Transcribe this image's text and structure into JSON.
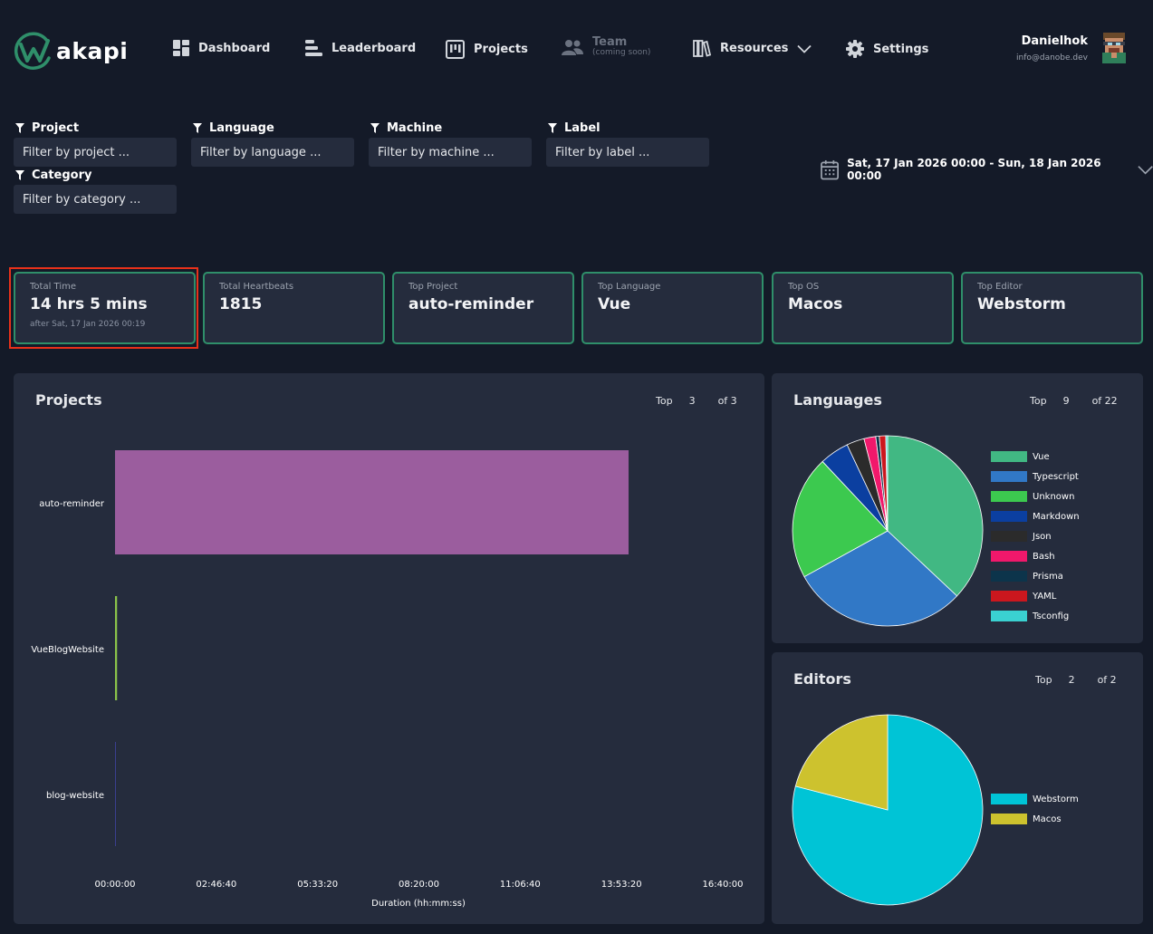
{
  "app": {
    "name": "akapi"
  },
  "nav": {
    "dashboard": "Dashboard",
    "leaderboard": "Leaderboard",
    "projects": "Projects",
    "team": "Team",
    "team_sub": "(coming soon)",
    "resources": "Resources",
    "settings": "Settings"
  },
  "user": {
    "name": "Danielhok",
    "email": "info@danobe.dev"
  },
  "filters": {
    "project": {
      "label": "Project",
      "placeholder": "Filter by project ..."
    },
    "language": {
      "label": "Language",
      "placeholder": "Filter by language ..."
    },
    "machine": {
      "label": "Machine",
      "placeholder": "Filter by machine ..."
    },
    "label": {
      "label": "Label",
      "placeholder": "Filter by label ..."
    },
    "category": {
      "label": "Category",
      "placeholder": "Filter by category ..."
    }
  },
  "date_range": "Sat, 17 Jan 2026 00:00 - Sun, 18 Jan 2026 00:00",
  "stats": {
    "total_time": {
      "title": "Total Time",
      "value": "14 hrs 5 mins",
      "sub": "after Sat, 17 Jan 2026 00:19"
    },
    "total_heartbeats": {
      "title": "Total Heartbeats",
      "value": "1815"
    },
    "top_project": {
      "title": "Top Project",
      "value": "auto-reminder"
    },
    "top_language": {
      "title": "Top Language",
      "value": "Vue"
    },
    "top_os": {
      "title": "Top OS",
      "value": "Macos"
    },
    "top_editor": {
      "title": "Top Editor",
      "value": "Webstorm"
    }
  },
  "projects_panel": {
    "title": "Projects",
    "top_label": "Top",
    "top_value": "3",
    "of_label": "of 3"
  },
  "languages_panel": {
    "title": "Languages",
    "top_label": "Top",
    "top_value": "9",
    "of_label": "of 22"
  },
  "editors_panel": {
    "title": "Editors",
    "top_label": "Top",
    "top_value": "2",
    "of_label": "of 2"
  },
  "colors": {
    "accent": "#2f8f6a",
    "highlight": "#e8311a",
    "panel": "#252c3d",
    "background": "#141a28"
  },
  "chart_data": [
    {
      "type": "bar",
      "orientation": "horizontal",
      "categories": [
        "auto-reminder",
        "VueBlogWebsite",
        "blog-website"
      ],
      "values": [
        50700,
        200,
        30
      ],
      "colors": [
        "#9b5d9e",
        "#8bc34a",
        "#3b3f8f"
      ],
      "xlabel": "Duration (hh:mm:ss)",
      "xlim": [
        0,
        60000
      ],
      "xticks": [
        0,
        10000,
        20000,
        30000,
        40000,
        50000,
        60000
      ],
      "xtick_labels": [
        "00:00:00",
        "02:46:40",
        "05:33:20",
        "08:20:00",
        "11:06:40",
        "13:53:20",
        "16:40:00"
      ]
    },
    {
      "type": "pie",
      "labels": [
        "Vue",
        "Typescript",
        "Unknown",
        "Markdown",
        "Json",
        "Bash",
        "Prisma",
        "YAML",
        "Tsconfig"
      ],
      "values": [
        37,
        30,
        21,
        5,
        3,
        2,
        0.6,
        1.1,
        0.3
      ],
      "colors": [
        "#41b883",
        "#3178c6",
        "#3cc94f",
        "#0b3fa0",
        "#2b2b2b",
        "#f1186b",
        "#0c344b",
        "#cb171e",
        "#3ad1d1"
      ],
      "legend": "right"
    },
    {
      "type": "pie",
      "labels": [
        "Webstorm",
        "Macos"
      ],
      "values": [
        79,
        21
      ],
      "colors": [
        "#00c4d6",
        "#cdc22e"
      ],
      "legend": "right"
    }
  ]
}
